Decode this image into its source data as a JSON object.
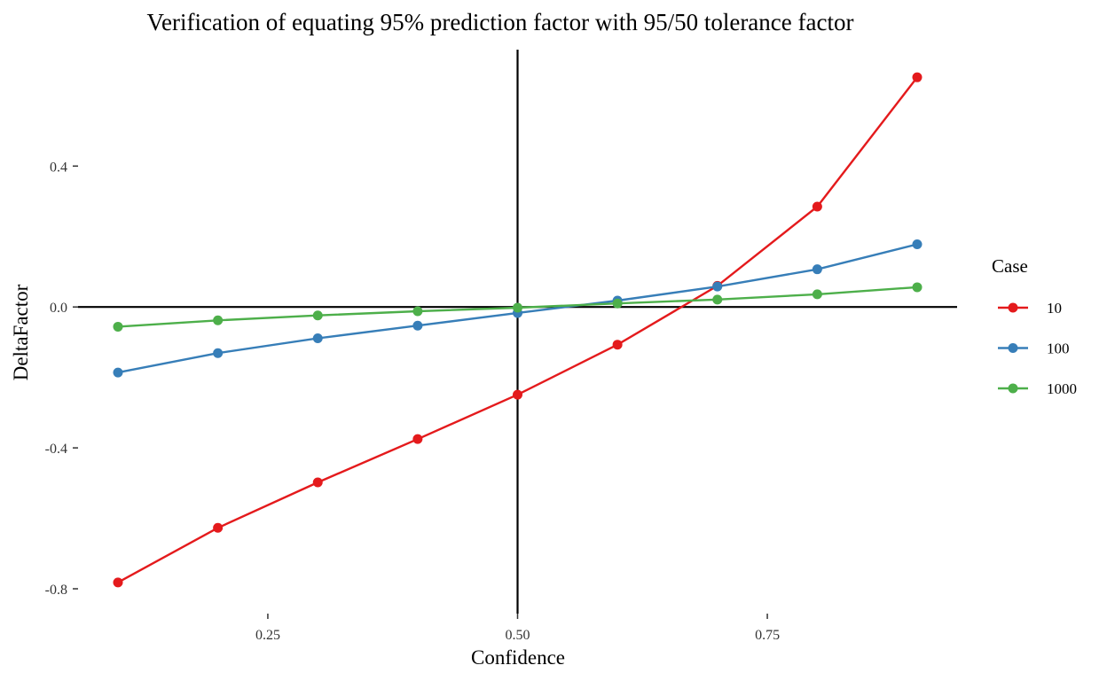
{
  "chart_data": {
    "type": "line",
    "title": "Verification of equating 95% prediction factor with 95/50 tolerance factor",
    "xlabel": "Confidence",
    "ylabel": "DeltaFactor",
    "xlim": [
      0.1,
      0.9
    ],
    "ylim": [
      -0.8,
      0.66
    ],
    "x_ticks": [
      0.25,
      0.5,
      0.75
    ],
    "x_tick_labels": [
      "0.25",
      "0.50",
      "0.75"
    ],
    "y_ticks": [
      0.4,
      0.0,
      -0.4,
      -0.8
    ],
    "y_tick_labels": [
      "0.4",
      "0.0",
      "-0.4",
      "-0.8"
    ],
    "reference_lines": {
      "x": 0.5,
      "y": 0.0
    },
    "grid": false,
    "legend": {
      "title": "Case",
      "position": "right"
    },
    "x": [
      0.1,
      0.2,
      0.3,
      0.4,
      0.5,
      0.6,
      0.7,
      0.8,
      0.9
    ],
    "series": [
      {
        "name": "10",
        "color": "#E41A1C",
        "values": [
          -0.782,
          -0.627,
          -0.498,
          -0.375,
          -0.249,
          -0.107,
          0.06,
          0.285,
          0.652
        ]
      },
      {
        "name": "100",
        "color": "#377EB8",
        "values": [
          -0.186,
          -0.131,
          -0.089,
          -0.053,
          -0.017,
          0.018,
          0.058,
          0.107,
          0.178
        ]
      },
      {
        "name": "1000",
        "color": "#4DAF4A",
        "values": [
          -0.056,
          -0.038,
          -0.024,
          -0.012,
          -0.002,
          0.01,
          0.021,
          0.036,
          0.056
        ]
      }
    ]
  }
}
